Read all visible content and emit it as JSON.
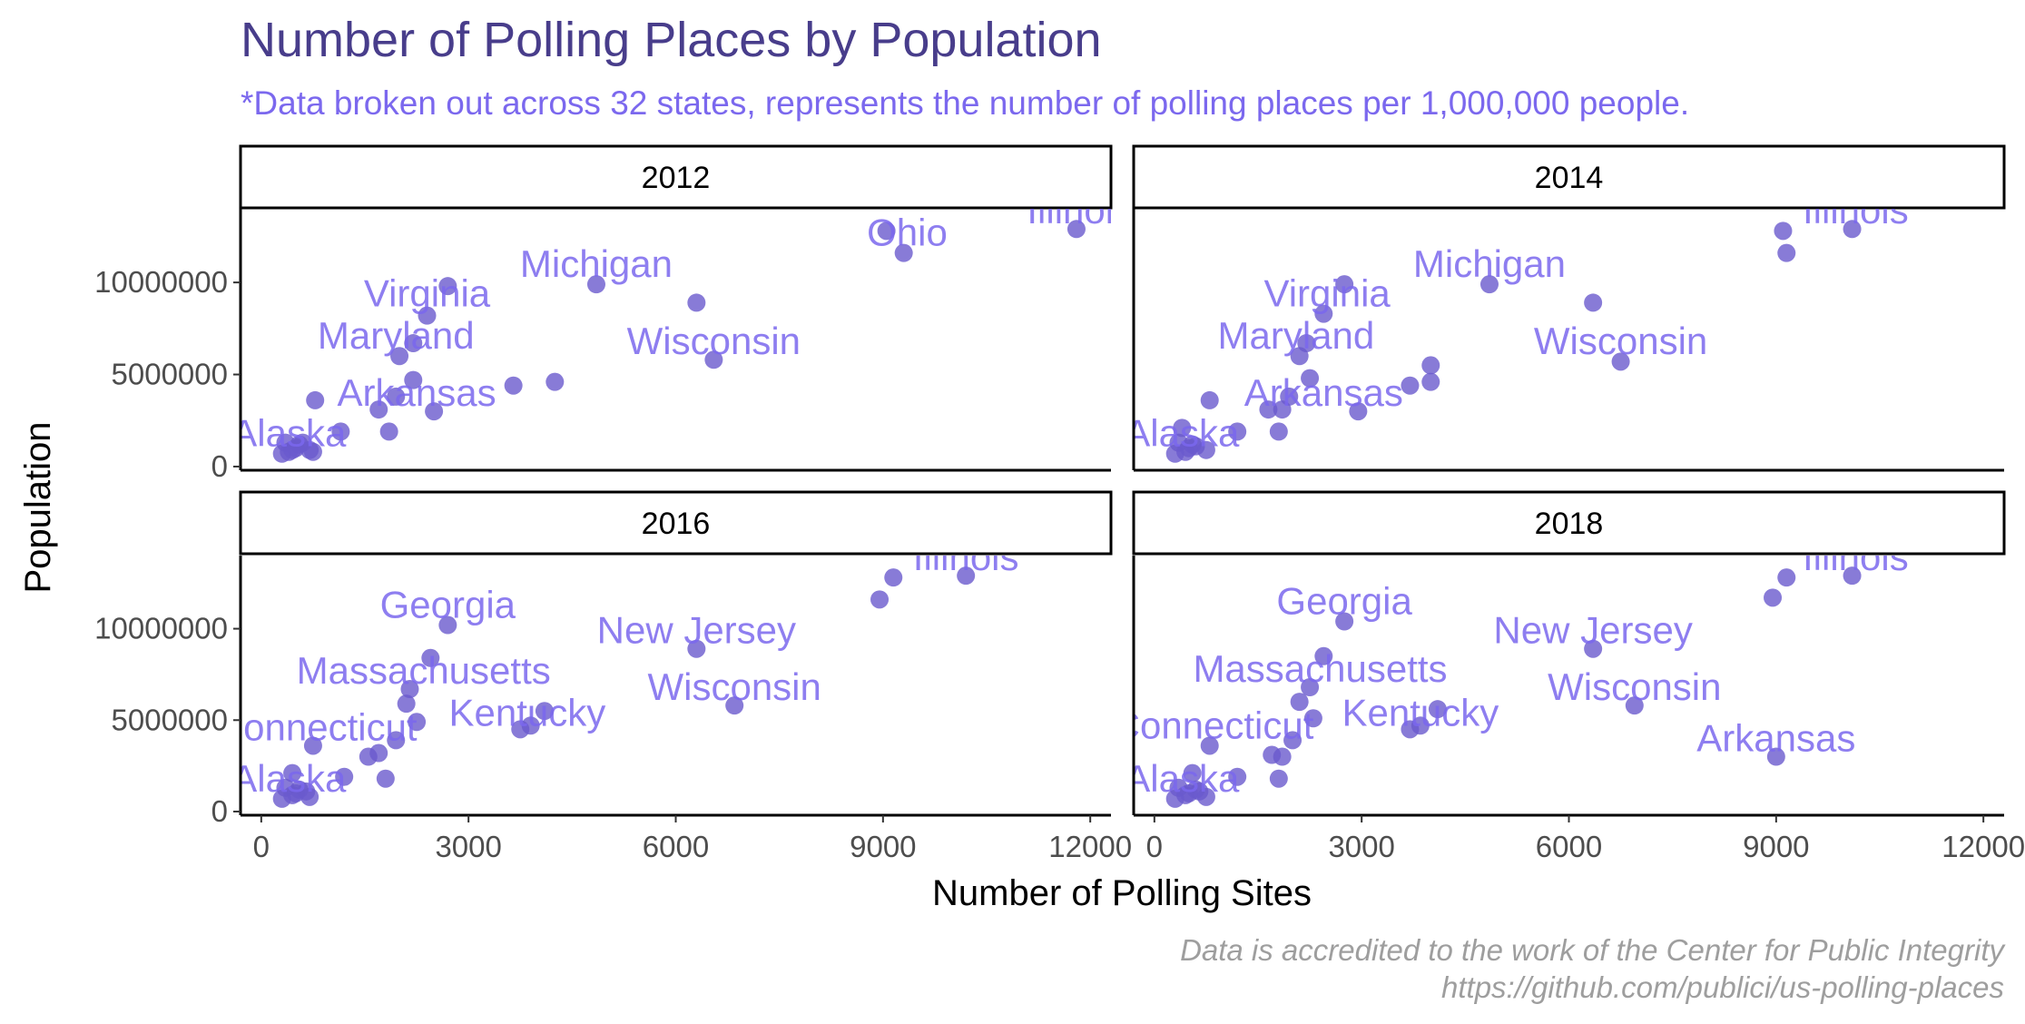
{
  "chart_data": {
    "type": "scatter",
    "title": "Number of Polling Places by Population",
    "subtitle": "*Data broken out across 32 states, represents the number of polling places per 1,000,000 people.",
    "xlabel": "Number of Polling Sites",
    "ylabel": "Population",
    "xlim": [
      -300,
      12300
    ],
    "ylim": [
      -200000,
      14000000
    ],
    "x_ticks": [
      0,
      3000,
      6000,
      9000,
      12000
    ],
    "x_tick_labels": [
      "0",
      "3000",
      "6000",
      "9000",
      "12000"
    ],
    "y_ticks": [
      0,
      5000000,
      10000000
    ],
    "y_tick_labels": [
      "0",
      "5000000",
      "10000000"
    ],
    "caption": [
      "Data is accredited to the work of the Center for Public Integrity",
      "https://github.com/publici/us-polling-places"
    ],
    "colors": {
      "point": "#6A5ACD",
      "label": "#7B68EE",
      "title": "#483D8B",
      "subtitle": "#7B68EE",
      "caption": "#9e9e9e"
    },
    "grid": false,
    "facets": [
      {
        "strip": "2012",
        "points": [
          [
            300,
            700000
          ],
          [
            350,
            1300000
          ],
          [
            400,
            800000
          ],
          [
            450,
            900000
          ],
          [
            500,
            1000000
          ],
          [
            550,
            1200000
          ],
          [
            600,
            1300000
          ],
          [
            700,
            900000
          ],
          [
            750,
            800000
          ],
          [
            780,
            3600000
          ],
          [
            1150,
            1900000
          ],
          [
            1700,
            3100000
          ],
          [
            1850,
            1900000
          ],
          [
            1950,
            3800000
          ],
          [
            2000,
            6000000
          ],
          [
            2200,
            4700000
          ],
          [
            2200,
            6700000
          ],
          [
            2400,
            8200000
          ],
          [
            2500,
            3000000
          ],
          [
            2700,
            9800000
          ],
          [
            3650,
            4400000
          ],
          [
            4250,
            4600000
          ],
          [
            4850,
            9900000
          ],
          [
            6300,
            8900000
          ],
          [
            6550,
            5800000
          ],
          [
            9050,
            12800000
          ],
          [
            9300,
            11600000
          ],
          [
            11800,
            12900000
          ]
        ],
        "labels": [
          {
            "text": "Alaska",
            "x": 400,
            "y": 1100000
          },
          {
            "text": "Arkansas",
            "x": 2250,
            "y": 3300000
          },
          {
            "text": "Maryland",
            "x": 1950,
            "y": 6400000
          },
          {
            "text": "Virginia",
            "x": 2400,
            "y": 8700000
          },
          {
            "text": "Michigan",
            "x": 4850,
            "y": 10300000
          },
          {
            "text": "Wisconsin",
            "x": 6550,
            "y": 6100000
          },
          {
            "text": "Ohio",
            "x": 9350,
            "y": 12000000
          },
          {
            "text": "Illinois",
            "x": 11850,
            "y": 13200000
          }
        ]
      },
      {
        "strip": "2014",
        "points": [
          [
            300,
            700000
          ],
          [
            350,
            1300000
          ],
          [
            400,
            2100000
          ],
          [
            450,
            800000
          ],
          [
            500,
            1000000
          ],
          [
            550,
            1200000
          ],
          [
            600,
            1100000
          ],
          [
            750,
            900000
          ],
          [
            800,
            3600000
          ],
          [
            1200,
            1900000
          ],
          [
            1650,
            3100000
          ],
          [
            1800,
            1900000
          ],
          [
            1850,
            3100000
          ],
          [
            1950,
            3800000
          ],
          [
            2100,
            6000000
          ],
          [
            2200,
            6700000
          ],
          [
            2250,
            4800000
          ],
          [
            2450,
            8300000
          ],
          [
            2950,
            3000000
          ],
          [
            2750,
            9900000
          ],
          [
            3700,
            4400000
          ],
          [
            4000,
            5500000
          ],
          [
            4000,
            4600000
          ],
          [
            4850,
            9900000
          ],
          [
            6350,
            8900000
          ],
          [
            6750,
            5700000
          ],
          [
            9100,
            12800000
          ],
          [
            9150,
            11600000
          ],
          [
            10100,
            12900000
          ]
        ],
        "labels": [
          {
            "text": "Alaska",
            "x": 400,
            "y": 1100000
          },
          {
            "text": "Arkansas",
            "x": 2450,
            "y": 3300000
          },
          {
            "text": "Maryland",
            "x": 2050,
            "y": 6400000
          },
          {
            "text": "Virginia",
            "x": 2500,
            "y": 8700000
          },
          {
            "text": "Michigan",
            "x": 4850,
            "y": 10300000
          },
          {
            "text": "Wisconsin",
            "x": 6750,
            "y": 6100000
          },
          {
            "text": "Illinois",
            "x": 10150,
            "y": 13200000
          }
        ]
      },
      {
        "strip": "2016",
        "points": [
          [
            300,
            700000
          ],
          [
            350,
            1300000
          ],
          [
            450,
            2100000
          ],
          [
            450,
            900000
          ],
          [
            500,
            1000000
          ],
          [
            550,
            1200000
          ],
          [
            650,
            1100000
          ],
          [
            700,
            800000
          ],
          [
            750,
            3600000
          ],
          [
            1200,
            1900000
          ],
          [
            1550,
            3000000
          ],
          [
            1700,
            3200000
          ],
          [
            1800,
            1800000
          ],
          [
            1950,
            3900000
          ],
          [
            2100,
            5900000
          ],
          [
            2150,
            6700000
          ],
          [
            2250,
            4900000
          ],
          [
            2450,
            8400000
          ],
          [
            3750,
            4500000
          ],
          [
            3900,
            4700000
          ],
          [
            4100,
            5500000
          ],
          [
            2700,
            10200000
          ],
          [
            6300,
            8900000
          ],
          [
            6850,
            5800000
          ],
          [
            8950,
            11600000
          ],
          [
            9150,
            12800000
          ],
          [
            10200,
            12900000
          ]
        ],
        "labels": [
          {
            "text": "Alaska",
            "x": 400,
            "y": 1100000
          },
          {
            "text": "Connecticut",
            "x": 800,
            "y": 3900000
          },
          {
            "text": "Kentucky",
            "x": 3850,
            "y": 4700000
          },
          {
            "text": "Massachusetts",
            "x": 2350,
            "y": 7000000
          },
          {
            "text": "Georgia",
            "x": 2700,
            "y": 10600000
          },
          {
            "text": "New Jersey",
            "x": 6300,
            "y": 9200000
          },
          {
            "text": "Wisconsin",
            "x": 6850,
            "y": 6100000
          },
          {
            "text": "Illinois",
            "x": 10200,
            "y": 13200000
          }
        ]
      },
      {
        "strip": "2018",
        "points": [
          [
            300,
            700000
          ],
          [
            350,
            1300000
          ],
          [
            450,
            900000
          ],
          [
            550,
            2100000
          ],
          [
            500,
            1000000
          ],
          [
            600,
            1200000
          ],
          [
            650,
            1100000
          ],
          [
            750,
            800000
          ],
          [
            800,
            3600000
          ],
          [
            1200,
            1900000
          ],
          [
            1700,
            3100000
          ],
          [
            1800,
            1800000
          ],
          [
            1850,
            3000000
          ],
          [
            2000,
            3900000
          ],
          [
            2100,
            6000000
          ],
          [
            2250,
            6800000
          ],
          [
            2300,
            5100000
          ],
          [
            2450,
            8500000
          ],
          [
            3700,
            4500000
          ],
          [
            3850,
            4700000
          ],
          [
            4100,
            5600000
          ],
          [
            2750,
            10400000
          ],
          [
            6350,
            8900000
          ],
          [
            6950,
            5800000
          ],
          [
            8950,
            11700000
          ],
          [
            9150,
            12800000
          ],
          [
            9000,
            3000000
          ],
          [
            10100,
            12900000
          ]
        ],
        "labels": [
          {
            "text": "Alaska",
            "x": 400,
            "y": 1100000
          },
          {
            "text": "Connecticut",
            "x": 850,
            "y": 4000000
          },
          {
            "text": "Kentucky",
            "x": 3850,
            "y": 4700000
          },
          {
            "text": "Massachusetts",
            "x": 2400,
            "y": 7100000
          },
          {
            "text": "Georgia",
            "x": 2750,
            "y": 10800000
          },
          {
            "text": "New Jersey",
            "x": 6350,
            "y": 9200000
          },
          {
            "text": "Wisconsin",
            "x": 6950,
            "y": 6100000
          },
          {
            "text": "Arkansas",
            "x": 9000,
            "y": 3300000
          },
          {
            "text": "Illinois",
            "x": 10150,
            "y": 13200000
          }
        ]
      }
    ]
  }
}
